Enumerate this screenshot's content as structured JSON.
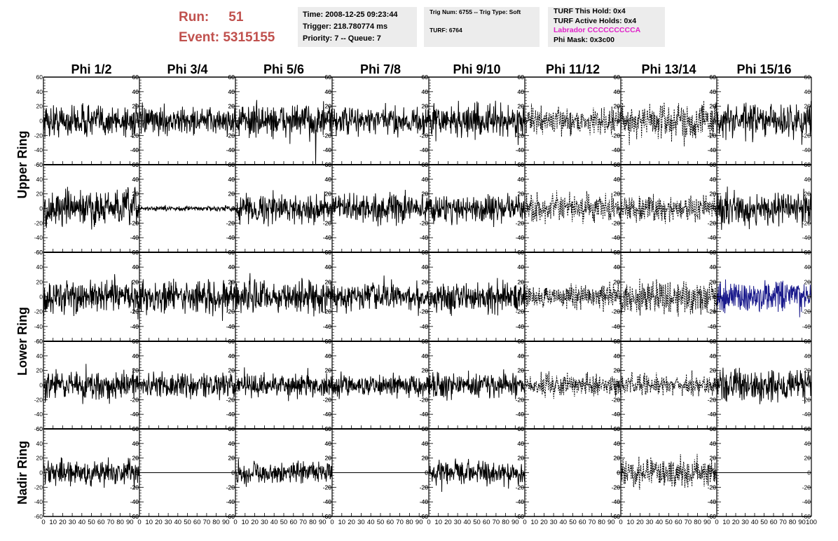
{
  "header": {
    "run_label": "Run:",
    "run_value": "51",
    "event_label": "Event:",
    "event_value": "5315155",
    "time": "Time: 2008-12-25 09:23:44",
    "trigger": "Trigger: 218.780774 ms",
    "priority": "Priority: 7 -- Queue: 7",
    "trig_num": "Trig Num: 6755 -- Trig Type: Soft",
    "turf": "TURF: 6764",
    "turf_this_hold": "TURF This Hold: 0x4",
    "turf_active_holds": "TURF Active Holds: 0x4",
    "labrador": "Labrador CCCCCCCCCA",
    "phi_mask": "Phi Mask: 0x3c00"
  },
  "colors": {
    "run_text": "#c0504d",
    "labrador_text": "#e020c8",
    "info_background": "#ececec",
    "trace_default": "#000000",
    "trace_highlight": "#1a1a8c"
  },
  "chart_data": {
    "type": "line",
    "columns": [
      "Phi 1/2",
      "Phi 3/4",
      "Phi 5/6",
      "Phi 7/8",
      "Phi 9/10",
      "Phi 11/12",
      "Phi 13/14",
      "Phi 15/16"
    ],
    "rows": [
      "Upper Ring",
      "",
      "Lower Ring",
      "",
      "Nadir Ring"
    ],
    "ylim": [
      -60,
      60
    ],
    "xlim": [
      0,
      100
    ],
    "y_ticks": [
      -60,
      -40,
      -20,
      0,
      20,
      40,
      60
    ],
    "x_ticks": [
      0,
      10,
      20,
      30,
      40,
      50,
      60,
      70,
      80,
      90,
      100
    ],
    "x_tick_labels_bottom": [
      "0",
      "10",
      "20",
      "30",
      "40",
      "50",
      "60",
      "70",
      "80",
      "90",
      "100"
    ],
    "panels": [
      [
        {
          "style": "solid",
          "color": "#000000",
          "amplitude": 20
        },
        {
          "style": "solid",
          "color": "#000000",
          "amplitude": 16
        },
        {
          "style": "solid",
          "color": "#000000",
          "amplitude": 20,
          "spike": {
            "x": 83,
            "y": -60
          }
        },
        {
          "style": "solid",
          "color": "#000000",
          "amplitude": 17
        },
        {
          "style": "solid",
          "color": "#000000",
          "amplitude": 20
        },
        {
          "style": "dashed",
          "color": "#000000",
          "amplitude": 15
        },
        {
          "style": "dashed",
          "color": "#000000",
          "amplitude": 22
        },
        {
          "style": "solid",
          "color": "#000000",
          "amplitude": 20
        }
      ],
      [
        {
          "style": "solid",
          "color": "#000000",
          "amplitude": 22
        },
        {
          "style": "solid",
          "color": "#000000",
          "amplitude": 3
        },
        {
          "style": "solid",
          "color": "#000000",
          "amplitude": 17
        },
        {
          "style": "solid",
          "color": "#000000",
          "amplitude": 17
        },
        {
          "style": "solid",
          "color": "#000000",
          "amplitude": 17
        },
        {
          "style": "dashed",
          "color": "#000000",
          "amplitude": 16
        },
        {
          "style": "dashed",
          "color": "#000000",
          "amplitude": 16
        },
        {
          "style": "solid",
          "color": "#000000",
          "amplitude": 20
        }
      ],
      [
        {
          "style": "solid",
          "color": "#000000",
          "amplitude": 20
        },
        {
          "style": "solid",
          "color": "#000000",
          "amplitude": 20
        },
        {
          "style": "solid",
          "color": "#000000",
          "amplitude": 20
        },
        {
          "style": "solid",
          "color": "#000000",
          "amplitude": 17
        },
        {
          "style": "solid",
          "color": "#000000",
          "amplitude": 17
        },
        {
          "style": "dashed",
          "color": "#000000",
          "amplitude": 14
        },
        {
          "style": "dashed",
          "color": "#000000",
          "amplitude": 20
        },
        {
          "style": "solid",
          "color": "#1a1a8c",
          "amplitude": 20
        }
      ],
      [
        {
          "style": "solid",
          "color": "#000000",
          "amplitude": 18
        },
        {
          "style": "solid",
          "color": "#000000",
          "amplitude": 15
        },
        {
          "style": "solid",
          "color": "#000000",
          "amplitude": 15
        },
        {
          "style": "solid",
          "color": "#000000",
          "amplitude": 13
        },
        {
          "style": "solid",
          "color": "#000000",
          "amplitude": 15
        },
        {
          "style": "dashed",
          "color": "#000000",
          "amplitude": 13
        },
        {
          "style": "dashed",
          "color": "#000000",
          "amplitude": 13
        },
        {
          "style": "solid",
          "color": "#000000",
          "amplitude": 20
        }
      ],
      [
        {
          "style": "solid",
          "color": "#000000",
          "amplitude": 17
        },
        {
          "style": "flat",
          "color": "#000000",
          "amplitude": 0
        },
        {
          "style": "solid",
          "color": "#000000",
          "amplitude": 13
        },
        {
          "style": "flat",
          "color": "#000000",
          "amplitude": 0
        },
        {
          "style": "solid",
          "color": "#000000",
          "amplitude": 15
        },
        {
          "style": "empty",
          "color": "#000000",
          "amplitude": 0
        },
        {
          "style": "dashed",
          "color": "#000000",
          "amplitude": 17
        },
        {
          "style": "flat",
          "color": "#000000",
          "amplitude": 0
        }
      ]
    ]
  }
}
